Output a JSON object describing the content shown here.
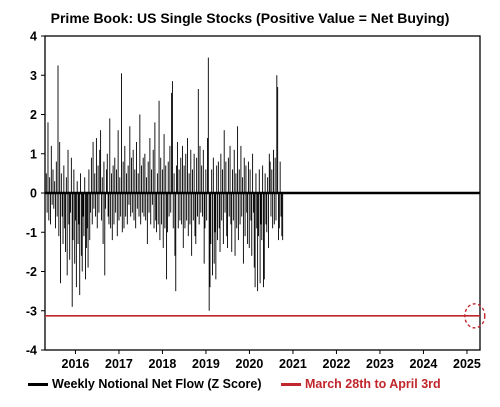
{
  "colors": {
    "series": "#000000",
    "reference": "#c0262b",
    "frame": "#000000"
  },
  "chart_data": {
    "type": "bar",
    "title": "Prime Book: US Single Stocks (Positive Value = Net Buying)",
    "xlabel": "",
    "ylabel": "",
    "ylim": [
      -4,
      4
    ],
    "xlim": [
      2015.3,
      2025.3
    ],
    "yticks": [
      -4,
      -3,
      -2,
      -1,
      0,
      1,
      2,
      3,
      4
    ],
    "xticks": [
      2016,
      2017,
      2018,
      2019,
      2020,
      2021,
      2022,
      2023,
      2024,
      2025
    ],
    "grid": false,
    "legend_position": "bottom",
    "series": [
      {
        "name": "Weekly Notional Net Flow (Z Score)",
        "color": "#000000",
        "x_start": 2015.33,
        "x_step": 0.0192,
        "values": [
          0.5,
          -0.5,
          1.8,
          -0.7,
          0.4,
          -0.8,
          1.2,
          -0.3,
          0.6,
          -0.4,
          0.3,
          -0.9,
          0.8,
          -0.6,
          3.25,
          -1.1,
          1.3,
          -2.3,
          0.5,
          -0.6,
          -1.3,
          0.7,
          -0.9,
          -1.5,
          0.4,
          -2.1,
          1.1,
          -0.8,
          -1.7,
          -0.5,
          0.9,
          -2.9,
          -1.2,
          0.6,
          -1.8,
          -0.7,
          -2.4,
          0.3,
          -1.3,
          -0.8,
          -2.6,
          0.5,
          -1.6,
          -2.0,
          -0.6,
          -1.1,
          0.4,
          -2.2,
          -1.4,
          -0.9,
          -1.9,
          0.6,
          -1.2,
          -0.5,
          0.9,
          -0.8,
          1.3,
          -0.4,
          0.5,
          -0.6,
          1.4,
          -0.9,
          0.7,
          -0.5,
          1.1,
          1.6,
          -0.7,
          0.4,
          -1.3,
          0.8,
          -2.1,
          -0.4,
          0.6,
          1.0,
          -0.6,
          -0.8,
          1.9,
          -0.9,
          0.5,
          -1.2,
          0.7,
          -0.8,
          0.9,
          -0.5,
          0.6,
          -1.1,
          1.6,
          -0.7,
          0.4,
          -0.6,
          3.05,
          -1.0,
          0.8,
          -0.9,
          1.2,
          -0.6,
          0.5,
          -0.8,
          0.7,
          -0.3,
          1.7,
          -0.6,
          0.9,
          -0.5,
          1.1,
          -0.7,
          0.6,
          -0.9,
          1.3,
          -0.4,
          0.5,
          -0.6,
          2.0,
          -0.8,
          0.7,
          -0.5,
          0.9,
          -0.6,
          1.0,
          -0.7,
          0.4,
          -1.3,
          0.8,
          -0.5,
          1.4,
          -0.8,
          0.6,
          -0.3,
          1.1,
          -0.9,
          1.8,
          -0.7,
          -1.0,
          0.5,
          -0.8,
          2.35,
          -1.2,
          0.9,
          -0.8,
          0.6,
          -1.4,
          1.5,
          -0.9,
          0.7,
          -2.2,
          -1.0,
          0.8,
          -0.6,
          1.2,
          -0.5,
          2.55,
          2.85,
          -0.9,
          0.5,
          -1.6,
          -2.5,
          0.7,
          1.3,
          -0.9,
          0.6,
          -0.7,
          0.9,
          -0.8,
          1.2,
          -1.4,
          0.7,
          -0.9,
          1.0,
          -0.7,
          1.4,
          -1.1,
          0.5,
          -0.8,
          1.1,
          -1.6,
          0.6,
          -0.7,
          1.0,
          -1.1,
          -1.3,
          0.9,
          -0.6,
          2.65,
          -0.8,
          1.2,
          -0.5,
          0.7,
          -0.6,
          1.1,
          -1.8,
          -0.9,
          0.6,
          -0.7,
          1.4,
          3.45,
          -3.0,
          -2.4,
          -1.3,
          0.6,
          -2.1,
          0.9,
          -1.8,
          -1.0,
          -2.2,
          0.7,
          -1.2,
          0.8,
          -0.9,
          -1.5,
          1.0,
          -0.7,
          0.6,
          -1.3,
          1.6,
          -0.5,
          0.8,
          -1.1,
          -1.4,
          0.9,
          -0.6,
          1.2,
          -0.8,
          -1.5,
          0.6,
          -0.7,
          1.1,
          -1.6,
          0.5,
          -0.9,
          1.7,
          -1.2,
          0.6,
          -0.8,
          1.2,
          -0.6,
          0.4,
          -1.8,
          0.9,
          -1.1,
          0.7,
          -0.5,
          -1.3,
          0.8,
          -1.4,
          0.6,
          -0.7,
          -1.6,
          1.0,
          -0.5,
          -1.9,
          -2.4,
          0.5,
          -0.9,
          -2.5,
          -1.1,
          0.6,
          -2.3,
          -0.8,
          -1.2,
          0.7,
          -2.4,
          -2.2,
          0.5,
          -0.8,
          -1.0,
          0.4,
          -1.4,
          1.0,
          0.8,
          -0.6,
          0.6,
          -0.9,
          1.1,
          -0.8,
          0.9,
          -0.7,
          3.0,
          2.7,
          -1.2,
          -0.9,
          0.8,
          -0.6,
          -1.1,
          -1.2
        ]
      },
      {
        "name": "March 28th to April 3rd",
        "type": "hline",
        "color": "#c0262b",
        "value": -3.13
      }
    ],
    "annotation": {
      "type": "dashed-circle",
      "color": "#c0262b",
      "x": 2025.18,
      "y": -3.13
    }
  }
}
